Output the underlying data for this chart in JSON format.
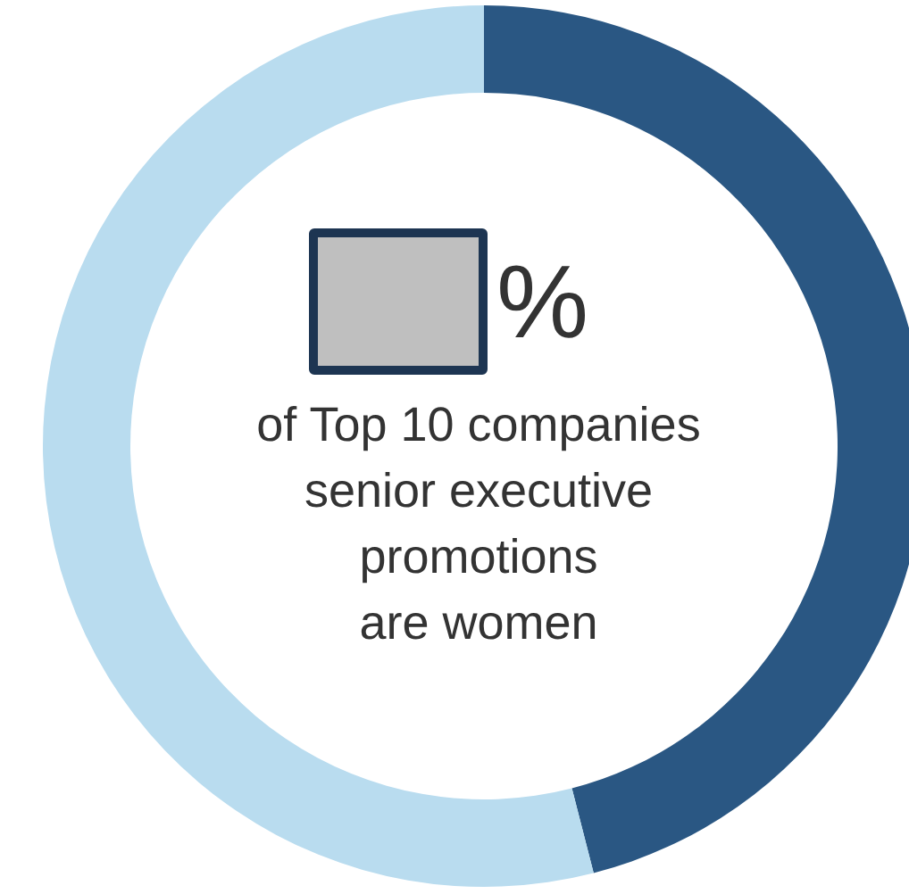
{
  "chart_data": {
    "type": "donut",
    "categories": [
      null,
      null
    ],
    "values": [
      46,
      54
    ],
    "colors": [
      "#2a5783",
      "#b9dcef"
    ],
    "annotations": [
      "%",
      "of Top 10 companies\nsenior executive\npromotions\nare women"
    ]
  }
}
